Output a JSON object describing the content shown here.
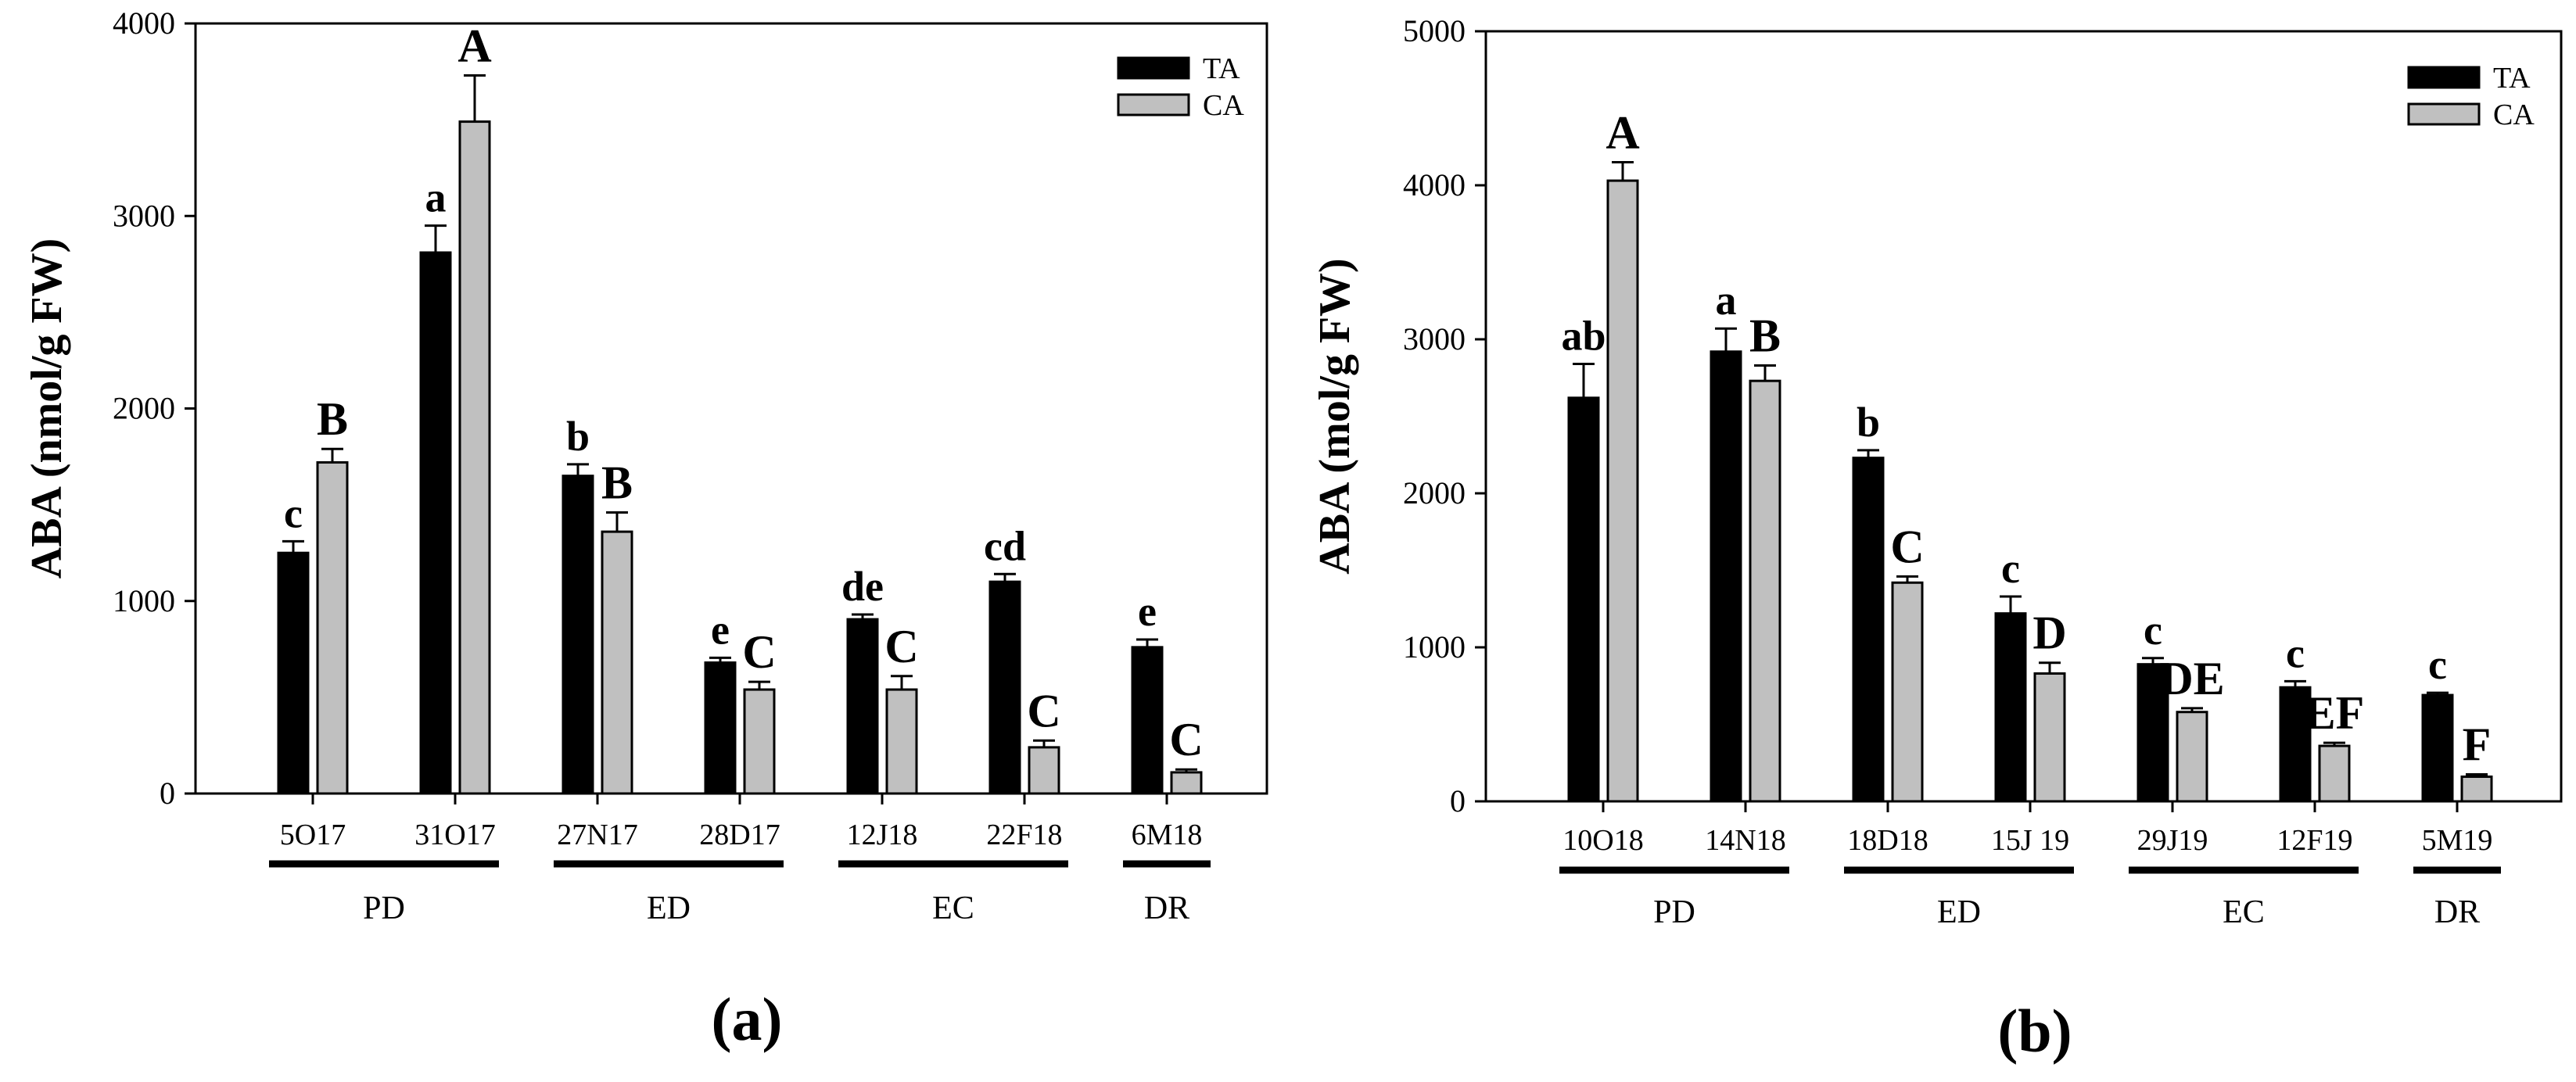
{
  "chart_data": [
    {
      "type": "bar",
      "panel_label": "(a)",
      "ylabel": "ABA (nmol/g FW)",
      "ylim": [
        0,
        4000
      ],
      "yticks": [
        0,
        1000,
        2000,
        3000,
        4000
      ],
      "legend": {
        "position": "top-right",
        "entries": [
          "TA",
          "CA"
        ]
      },
      "series": [
        {
          "name": "TA",
          "color": "#000000",
          "values": [
            1250,
            2810,
            1650,
            680,
            905,
            1100,
            760
          ],
          "errors": [
            60,
            140,
            60,
            25,
            25,
            40,
            40
          ],
          "letters": [
            "c",
            "a",
            "b",
            "e",
            "de",
            "cd",
            "e"
          ]
        },
        {
          "name": "CA",
          "color": "#c0c0c0",
          "values": [
            1720,
            3490,
            1360,
            540,
            540,
            240,
            110
          ],
          "errors": [
            70,
            240,
            100,
            40,
            70,
            35,
            15
          ],
          "letters": [
            "B",
            "A",
            "B",
            "C",
            "C",
            "C",
            "C"
          ]
        }
      ],
      "categories": [
        "5O17",
        "31O17",
        "27N17",
        "28D17",
        "12J18",
        "22F18",
        "6M18"
      ],
      "groups": [
        {
          "label": "PD",
          "start": 0,
          "end": 1
        },
        {
          "label": "ED",
          "start": 2,
          "end": 3
        },
        {
          "label": "EC",
          "start": 4,
          "end": 5
        },
        {
          "label": "DR",
          "start": 6,
          "end": 6
        }
      ]
    },
    {
      "type": "bar",
      "panel_label": "(b)",
      "ylabel": "ABA (mol/g FW)",
      "ylim": [
        0,
        5000
      ],
      "yticks": [
        0,
        1000,
        2000,
        3000,
        4000,
        5000
      ],
      "legend": {
        "position": "top-right",
        "entries": [
          "TA",
          "CA"
        ]
      },
      "series": [
        {
          "name": "TA",
          "color": "#000000",
          "values": [
            2620,
            2920,
            2230,
            1220,
            890,
            740,
            690
          ],
          "errors": [
            220,
            150,
            50,
            110,
            40,
            40,
            15
          ],
          "letters": [
            "ab",
            "a",
            "b",
            "c",
            "c",
            "c",
            "c"
          ]
        },
        {
          "name": "CA",
          "color": "#c0c0c0",
          "values": [
            4030,
            2730,
            1420,
            830,
            580,
            360,
            160
          ],
          "errors": [
            120,
            100,
            40,
            70,
            25,
            20,
            15
          ],
          "letters": [
            "A",
            "B",
            "C",
            "D",
            "DE",
            "EF",
            "F"
          ]
        }
      ],
      "categories": [
        "10O18",
        "14N18",
        "18D18",
        "15J 19",
        "29J19",
        "12F19",
        "5M19"
      ],
      "groups": [
        {
          "label": "PD",
          "start": 0,
          "end": 1
        },
        {
          "label": "ED",
          "start": 2,
          "end": 3
        },
        {
          "label": "EC",
          "start": 4,
          "end": 5
        },
        {
          "label": "DR",
          "start": 6,
          "end": 6
        }
      ]
    }
  ]
}
